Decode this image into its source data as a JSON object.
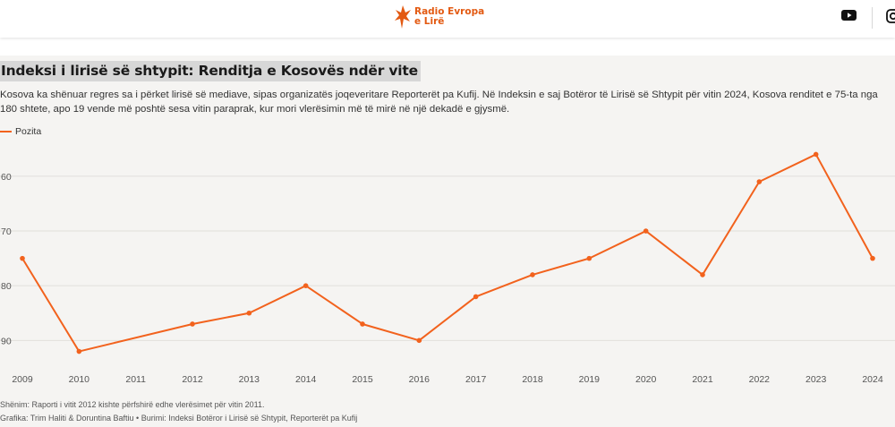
{
  "header": {
    "logo_line1": "Radio Evropa",
    "logo_line2": "e Lirë",
    "brand_color": "#e35a12"
  },
  "icons": [
    "radio-evropa-logo-icon",
    "youtube-icon",
    "instagram-icon"
  ],
  "title": "Indeksi i lirisë së shtypit: Renditja e Kosovës ndër vite",
  "description": "Kosova ka shënuar regres sa i përket lirisë së mediave, sipas organizatës joqeveritare Reporterët pa Kufij. Në Indeksin e saj Botëror të Lirisë së Shtypit për vitin 2024, Kosova renditet e 75-ta nga 180 shtete, apo 19 vende më poshtë sesa vitin paraprak, kur mori vlerësimin më të mirë në një dekadë e gjysmë.",
  "legend": {
    "label": "Pozita",
    "color": "#f2621d"
  },
  "chart_data": {
    "type": "line",
    "x": [
      2009,
      2010,
      2011,
      2012,
      2013,
      2014,
      2015,
      2016,
      2017,
      2018,
      2019,
      2020,
      2021,
      2022,
      2023,
      2024
    ],
    "series": [
      {
        "name": "Pozita",
        "color": "#f2621d",
        "points": [
          {
            "x": 2009,
            "y": 75
          },
          {
            "x": 2010,
            "y": 92
          },
          {
            "x": 2012,
            "y": 87
          },
          {
            "x": 2013,
            "y": 85
          },
          {
            "x": 2014,
            "y": 80
          },
          {
            "x": 2015,
            "y": 87
          },
          {
            "x": 2016,
            "y": 90
          },
          {
            "x": 2017,
            "y": 82
          },
          {
            "x": 2018,
            "y": 78
          },
          {
            "x": 2019,
            "y": 75
          },
          {
            "x": 2020,
            "y": 70
          },
          {
            "x": 2021,
            "y": 78
          },
          {
            "x": 2022,
            "y": 61
          },
          {
            "x": 2023,
            "y": 56
          },
          {
            "x": 2024,
            "y": 75
          }
        ]
      }
    ],
    "y_ticks": [
      60,
      70,
      80,
      90
    ],
    "y_tick_labels": [
      "60",
      "70",
      "80",
      "90"
    ],
    "ylim": [
      52,
      96
    ],
    "y_inverted": true,
    "grid": true,
    "legend_position": "top-left"
  },
  "footer": {
    "note": "Shënim: Raporti i vitit 2012 kishte përfshirë edhe vlerësimet për vitin 2011.",
    "credit": "Grafika: Trim Haliti & Doruntina Baftiu • Burimi: Indeksi Botëror i Lirisë së Shtypit, Reporterët pa Kufij"
  }
}
